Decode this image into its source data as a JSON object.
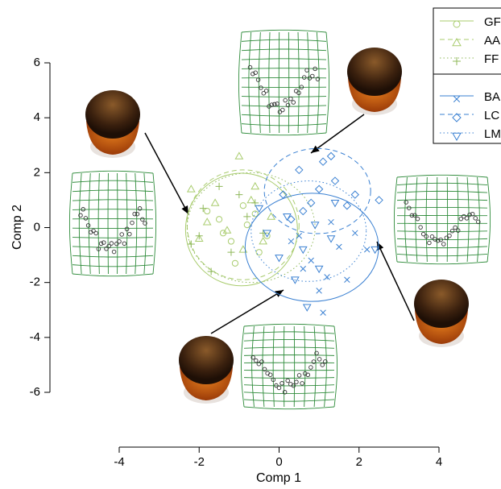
{
  "chart_data": {
    "type": "scatter",
    "x_label": "Comp 1",
    "y_label": "Comp 2",
    "xlim": [
      -4,
      4
    ],
    "ylim": [
      -6,
      6
    ],
    "xticks": [
      -4,
      -2,
      0,
      2,
      4
    ],
    "yticks": [
      -6,
      -4,
      -2,
      0,
      2,
      4,
      6
    ],
    "grid": false,
    "legend": "top right",
    "series": [
      {
        "name": "GF",
        "color": "#a9cc6e",
        "marker": "circle",
        "linestyle": "solid",
        "x": [
          -1.5,
          -1.2,
          -0.8,
          -0.5,
          -1.8,
          -0.9,
          -0.3,
          -1.1,
          -0.6,
          -1.4
        ],
        "y": [
          0.3,
          -0.5,
          0.1,
          -0.9,
          0.6,
          0.8,
          -0.3,
          -1.3,
          0.5,
          -0.2
        ],
        "ellipse": {
          "center": [
            -0.94,
            -0.07
          ],
          "radii": [
            1.4,
            2.05
          ]
        }
      },
      {
        "name": "AA",
        "color": "#a9cc6e",
        "marker": "triangle-up",
        "linestyle": "dashed",
        "x": [
          -2.2,
          -1.6,
          -1.0,
          -0.6,
          -0.2,
          -1.3,
          -0.9,
          -1.8,
          -0.4,
          -2.0,
          -0.7
        ],
        "y": [
          1.4,
          0.9,
          2.6,
          1.5,
          0.4,
          -0.1,
          -0.8,
          0.2,
          -0.5,
          -0.4,
          1.0
        ],
        "ellipse": {
          "center": [
            -0.9,
            0.1
          ],
          "radii": [
            1.4,
            2.0
          ]
        }
      },
      {
        "name": "FF",
        "color": "#8fb85a",
        "marker": "plus",
        "linestyle": "dotted",
        "x": [
          -2.2,
          -1.9,
          -1.5,
          -1.2,
          -0.8,
          -0.4,
          -1.7,
          -1.0,
          -2.0,
          -0.6
        ],
        "y": [
          -0.6,
          0.7,
          1.5,
          -0.9,
          0.4,
          -0.2,
          -1.6,
          1.2,
          -0.3,
          0.9
        ],
        "ellipse": {
          "center": [
            -0.7,
            0.0
          ],
          "radii": [
            1.6,
            2.0
          ]
        }
      },
      {
        "name": "BA",
        "color": "#3a80d2",
        "marker": "cross",
        "linestyle": "solid",
        "x": [
          0.3,
          0.8,
          1.2,
          1.5,
          1.9,
          0.6,
          1.0,
          1.7,
          1.3,
          2.2,
          1.1,
          0.5
        ],
        "y": [
          -0.5,
          -1.2,
          -1.8,
          -0.7,
          -0.2,
          -1.5,
          -2.3,
          -1.9,
          0.2,
          -0.8,
          -3.1,
          -0.3
        ],
        "ellipse": {
          "center": [
            0.82,
            -0.72
          ],
          "radii": [
            1.67,
            1.97
          ]
        }
      },
      {
        "name": "LC",
        "color": "#3a80d2",
        "marker": "diamond",
        "linestyle": "dashed",
        "x": [
          0.1,
          0.5,
          0.8,
          1.1,
          1.4,
          1.7,
          0.3,
          1.0,
          1.9,
          0.6,
          1.3,
          2.5
        ],
        "y": [
          1.2,
          2.1,
          0.9,
          2.4,
          1.7,
          0.8,
          0.3,
          1.4,
          1.2,
          0.6,
          2.6,
          1.0
        ],
        "ellipse": {
          "center": [
            0.96,
            1.33
          ],
          "radii": [
            1.33,
            1.55
          ]
        }
      },
      {
        "name": "LM",
        "color": "#3a80d2",
        "marker": "triangle-down",
        "linestyle": "dotted",
        "x": [
          -0.3,
          0.2,
          0.6,
          0.9,
          1.3,
          0.0,
          0.4,
          1.0,
          -0.5,
          2.4,
          0.7,
          1.4
        ],
        "y": [
          -0.2,
          0.4,
          -0.8,
          0.1,
          -0.4,
          -1.1,
          -1.9,
          -1.5,
          0.7,
          -0.8,
          -2.9,
          0.9
        ],
        "ellipse": {
          "center": [
            0.74,
            -0.13
          ],
          "radii": [
            1.44,
            1.83
          ]
        }
      }
    ]
  }
}
